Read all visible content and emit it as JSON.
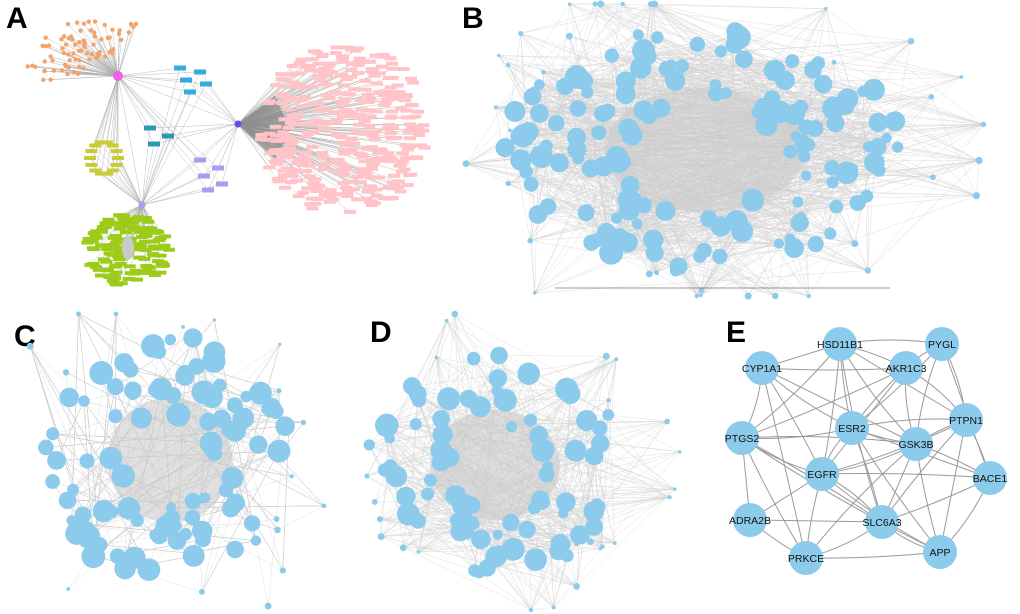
{
  "panels": {
    "a": {
      "letter": "A"
    },
    "b": {
      "letter": "B"
    },
    "c": {
      "letter": "C"
    },
    "d": {
      "letter": "D"
    },
    "e": {
      "letter": "E"
    }
  },
  "colors": {
    "node_blue": "#8ccbec",
    "edge_gray": "#9a9a9a",
    "orange": "#f4a36b",
    "pink_node": "#ffc3c8",
    "magenta": "#f25ee5",
    "blue_hub": "#5b52e6",
    "lavender": "#a79ef0",
    "teal": "#2a9ab4",
    "olive": "#c9cc38",
    "green": "#9ccb1a",
    "sky_rect": "#36a9df"
  },
  "network_e": {
    "nodes": [
      {
        "id": "HSD11B1",
        "label": "HSD11B1"
      },
      {
        "id": "PYGL",
        "label": "PYGL"
      },
      {
        "id": "CYP1A1",
        "label": "CYP1A1"
      },
      {
        "id": "AKR1C3",
        "label": "AKR1C3"
      },
      {
        "id": "PTPN1",
        "label": "PTPN1"
      },
      {
        "id": "ESR2",
        "label": "ESR2"
      },
      {
        "id": "PTGS2",
        "label": "PTGS2"
      },
      {
        "id": "GSK3B",
        "label": "GSK3B"
      },
      {
        "id": "EGFR",
        "label": "EGFR"
      },
      {
        "id": "BACE1",
        "label": "BACE1"
      },
      {
        "id": "ADRA2B",
        "label": "ADRA2B"
      },
      {
        "id": "SLC6A3",
        "label": "SLC6A3"
      },
      {
        "id": "APP",
        "label": "APP"
      },
      {
        "id": "PRKCE",
        "label": "PRKCE"
      }
    ],
    "edges": [
      [
        "HSD11B1",
        "PYGL"
      ],
      [
        "HSD11B1",
        "AKR1C3"
      ],
      [
        "HSD11B1",
        "CYP1A1"
      ],
      [
        "HSD11B1",
        "ESR2"
      ],
      [
        "HSD11B1",
        "GSK3B"
      ],
      [
        "HSD11B1",
        "PTGS2"
      ],
      [
        "HSD11B1",
        "EGFR"
      ],
      [
        "HSD11B1",
        "PTPN1"
      ],
      [
        "PYGL",
        "AKR1C3"
      ],
      [
        "PYGL",
        "GSK3B"
      ],
      [
        "PYGL",
        "PTPN1"
      ],
      [
        "PYGL",
        "ESR2"
      ],
      [
        "PYGL",
        "BACE1"
      ],
      [
        "CYP1A1",
        "AKR1C3"
      ],
      [
        "CYP1A1",
        "ESR2"
      ],
      [
        "CYP1A1",
        "PTGS2"
      ],
      [
        "CYP1A1",
        "EGFR"
      ],
      [
        "CYP1A1",
        "GSK3B"
      ],
      [
        "AKR1C3",
        "ESR2"
      ],
      [
        "AKR1C3",
        "GSK3B"
      ],
      [
        "AKR1C3",
        "PTPN1"
      ],
      [
        "AKR1C3",
        "PTGS2"
      ],
      [
        "AKR1C3",
        "EGFR"
      ],
      [
        "PTPN1",
        "GSK3B"
      ],
      [
        "PTPN1",
        "ESR2"
      ],
      [
        "PTPN1",
        "EGFR"
      ],
      [
        "PTPN1",
        "BACE1"
      ],
      [
        "PTPN1",
        "APP"
      ],
      [
        "ESR2",
        "GSK3B"
      ],
      [
        "ESR2",
        "EGFR"
      ],
      [
        "ESR2",
        "PTGS2"
      ],
      [
        "ESR2",
        "SLC6A3"
      ],
      [
        "ESR2",
        "BACE1"
      ],
      [
        "ESR2",
        "APP"
      ],
      [
        "PTGS2",
        "EGFR"
      ],
      [
        "PTGS2",
        "GSK3B"
      ],
      [
        "PTGS2",
        "SLC6A3"
      ],
      [
        "PTGS2",
        "ADRA2B"
      ],
      [
        "PTGS2",
        "PRKCE"
      ],
      [
        "PTGS2",
        "APP"
      ],
      [
        "GSK3B",
        "EGFR"
      ],
      [
        "GSK3B",
        "BACE1"
      ],
      [
        "GSK3B",
        "SLC6A3"
      ],
      [
        "GSK3B",
        "APP"
      ],
      [
        "GSK3B",
        "PRKCE"
      ],
      [
        "EGFR",
        "SLC6A3"
      ],
      [
        "EGFR",
        "BACE1"
      ],
      [
        "EGFR",
        "ADRA2B"
      ],
      [
        "EGFR",
        "PRKCE"
      ],
      [
        "EGFR",
        "APP"
      ],
      [
        "BACE1",
        "APP"
      ],
      [
        "BACE1",
        "SLC6A3"
      ],
      [
        "ADRA2B",
        "SLC6A3"
      ],
      [
        "ADRA2B",
        "PRKCE"
      ],
      [
        "SLC6A3",
        "APP"
      ],
      [
        "SLC6A3",
        "PRKCE"
      ],
      [
        "APP",
        "PRKCE"
      ],
      [
        "CYP1A1",
        "PRKCE"
      ],
      [
        "PTPN1",
        "SLC6A3"
      ],
      [
        "HSD11B1",
        "SLC6A3"
      ]
    ]
  }
}
